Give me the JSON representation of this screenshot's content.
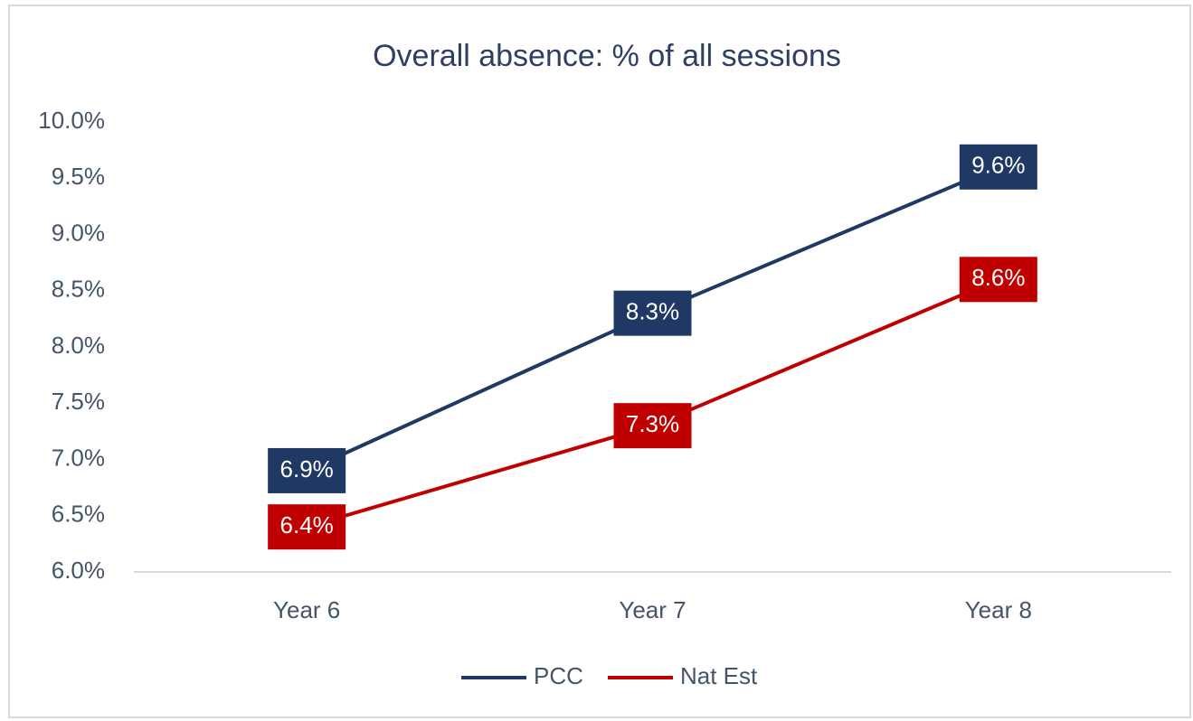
{
  "chart_data": {
    "type": "line",
    "title": "Overall absence: % of all sessions",
    "categories": [
      "Year 6",
      "Year 7",
      "Year 8"
    ],
    "series": [
      {
        "name": "PCC",
        "color": "#203864",
        "values": [
          6.9,
          8.3,
          9.6
        ],
        "value_labels": [
          "6.9%",
          "8.3%",
          "9.6%"
        ]
      },
      {
        "name": "Nat Est",
        "color": "#c00000",
        "values": [
          6.4,
          7.3,
          8.6
        ],
        "value_labels": [
          "6.4%",
          "7.3%",
          "8.6%"
        ]
      }
    ],
    "ylim": [
      6,
      10
    ],
    "yticks": [
      {
        "value": 6,
        "label": "6.0%"
      },
      {
        "value": 6.5,
        "label": "6.5%"
      },
      {
        "value": 7,
        "label": "7.0%"
      },
      {
        "value": 7.5,
        "label": "7.5%"
      },
      {
        "value": 8,
        "label": "8.0%"
      },
      {
        "value": 8.5,
        "label": "8.5%"
      },
      {
        "value": 9,
        "label": "9.0%"
      },
      {
        "value": 9.5,
        "label": "9.5%"
      },
      {
        "value": 10,
        "label": "10.0%"
      }
    ],
    "grid": false,
    "legend": "bottom"
  }
}
